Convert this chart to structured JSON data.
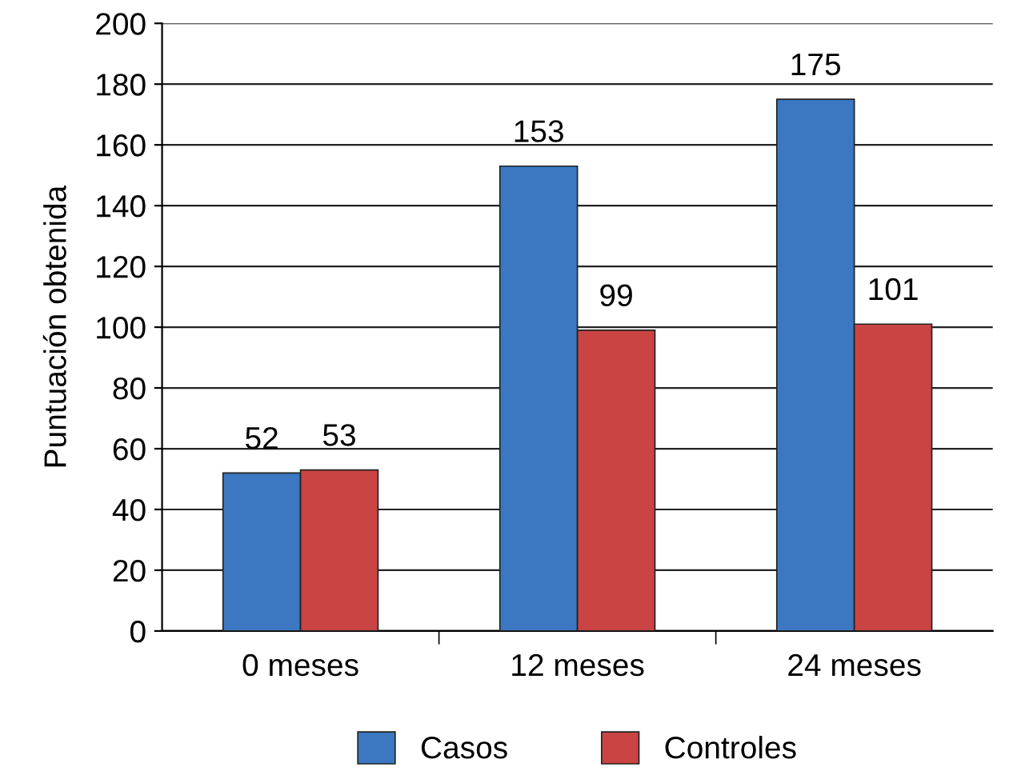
{
  "chart_data": {
    "type": "bar",
    "ylabel": "Puntuación obtenida",
    "categories": [
      "0 meses",
      "12 meses",
      "24 meses"
    ],
    "series": [
      {
        "name": "Casos",
        "color": "#3b78c1",
        "values": [
          52,
          153,
          175
        ]
      },
      {
        "name": "Controles",
        "color": "#c94443",
        "values": [
          53,
          99,
          101
        ]
      }
    ],
    "ylim": [
      0,
      200
    ],
    "yticks": [
      0,
      20,
      40,
      60,
      80,
      100,
      120,
      140,
      160,
      180,
      200
    ],
    "grid": "y",
    "legend": "bottom",
    "data_labels": true
  }
}
